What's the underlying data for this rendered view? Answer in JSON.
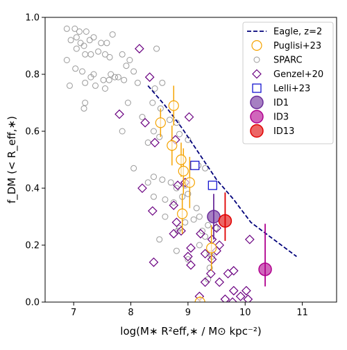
{
  "chart_data": {
    "type": "scatter",
    "xlabel": "log(M∗ R²eff,∗ / M⊙ kpc⁻²)",
    "ylabel": "f_DM (< R_eff,∗)",
    "xlim": [
      6.5,
      11.6
    ],
    "ylim": [
      0.0,
      1.0
    ],
    "x_ticks": [
      "7",
      "8",
      "9",
      "10",
      "11"
    ],
    "y_ticks": [
      "0.0",
      "0.2",
      "0.4",
      "0.6",
      "0.8",
      "1.0"
    ],
    "grid": false,
    "legend_position": "top-right",
    "series": [
      {
        "name": "Eagle, z=2",
        "kind": "dashed-line",
        "color": "#00007a",
        "x": [
          8.3,
          8.6,
          8.9,
          9.2,
          9.5,
          9.8,
          10.1,
          10.5,
          10.9
        ],
        "y": [
          0.76,
          0.69,
          0.61,
          0.52,
          0.43,
          0.36,
          0.28,
          0.22,
          0.16
        ]
      },
      {
        "name": "Puglisi+23",
        "kind": "open-circle-errorbar",
        "color": "#f5a300",
        "points": [
          {
            "x": 8.75,
            "y": 0.69,
            "yerr": 0.07
          },
          {
            "x": 8.52,
            "y": 0.63,
            "yerr": 0.05
          },
          {
            "x": 8.88,
            "y": 0.5,
            "yerr": 0.06
          },
          {
            "x": 8.72,
            "y": 0.55,
            "yerr": 0.07
          },
          {
            "x": 8.92,
            "y": 0.46,
            "yerr": 0.08
          },
          {
            "x": 9.03,
            "y": 0.42,
            "yerr": 0.09
          },
          {
            "x": 8.9,
            "y": 0.31,
            "yerr": 0.07
          },
          {
            "x": 9.41,
            "y": 0.19,
            "yerr": 0.08
          },
          {
            "x": 9.21,
            "y": 0.0,
            "yerr": 0.02
          }
        ]
      },
      {
        "name": "SPARC",
        "kind": "open-circle",
        "color": "#999999",
        "points": [
          [
            6.88,
            0.96
          ],
          [
            7.02,
            0.96
          ],
          [
            7.1,
            0.95
          ],
          [
            7.22,
            0.95
          ],
          [
            7.05,
            0.93
          ],
          [
            6.95,
            0.92
          ],
          [
            7.12,
            0.91
          ],
          [
            7.18,
            0.9
          ],
          [
            7.28,
            0.92
          ],
          [
            7.35,
            0.93
          ],
          [
            7.48,
            0.91
          ],
          [
            7.58,
            0.91
          ],
          [
            7.68,
            0.94
          ],
          [
            7.2,
            0.87
          ],
          [
            7.3,
            0.87
          ],
          [
            7.43,
            0.88
          ],
          [
            7.55,
            0.87
          ],
          [
            7.63,
            0.86
          ],
          [
            7.85,
            0.87
          ],
          [
            7.92,
            0.83
          ],
          [
            7.05,
            0.89
          ],
          [
            6.88,
            0.85
          ],
          [
            7.03,
            0.82
          ],
          [
            7.15,
            0.81
          ],
          [
            7.3,
            0.79
          ],
          [
            7.35,
            0.8
          ],
          [
            7.52,
            0.78
          ],
          [
            7.65,
            0.8
          ],
          [
            7.78,
            0.79
          ],
          [
            7.88,
            0.78
          ],
          [
            8.05,
            0.81
          ],
          [
            7.98,
            0.85
          ],
          [
            8.45,
            0.89
          ],
          [
            6.93,
            0.76
          ],
          [
            7.2,
            0.77
          ],
          [
            7.38,
            0.76
          ],
          [
            7.55,
            0.75
          ],
          [
            7.62,
            0.78
          ],
          [
            7.72,
            0.79
          ],
          [
            7.2,
            0.7
          ],
          [
            7.18,
            0.68
          ],
          [
            8.12,
            0.77
          ],
          [
            8.42,
            0.75
          ],
          [
            8.55,
            0.77
          ],
          [
            7.95,
            0.7
          ],
          [
            8.38,
            0.7
          ],
          [
            8.52,
            0.68
          ],
          [
            8.68,
            0.64
          ],
          [
            8.85,
            0.59
          ],
          [
            9.0,
            0.57
          ],
          [
            8.2,
            0.65
          ],
          [
            8.4,
            0.6
          ],
          [
            8.5,
            0.58
          ],
          [
            8.3,
            0.56
          ],
          [
            8.8,
            0.63
          ],
          [
            9.18,
            0.48
          ],
          [
            9.3,
            0.47
          ],
          [
            8.4,
            0.44
          ],
          [
            8.55,
            0.43
          ],
          [
            8.7,
            0.42
          ],
          [
            8.8,
            0.4
          ],
          [
            8.95,
            0.41
          ],
          [
            8.9,
            0.37
          ],
          [
            9.0,
            0.38
          ],
          [
            8.6,
            0.36
          ],
          [
            8.3,
            0.42
          ],
          [
            8.4,
            0.37
          ],
          [
            8.75,
            0.35
          ],
          [
            9.15,
            0.33
          ],
          [
            9.1,
            0.29
          ],
          [
            8.95,
            0.28
          ],
          [
            9.2,
            0.3
          ],
          [
            9.25,
            0.25
          ],
          [
            9.35,
            0.27
          ],
          [
            9.3,
            0.23
          ],
          [
            9.48,
            0.26
          ],
          [
            9.38,
            0.17
          ],
          [
            9.42,
            0.16
          ],
          [
            9.38,
            0.12
          ],
          [
            9.35,
            0.08
          ],
          [
            8.82,
            0.25
          ],
          [
            8.6,
            0.3
          ],
          [
            8.5,
            0.22
          ],
          [
            8.8,
            0.18
          ],
          [
            9.2,
            0.2
          ],
          [
            9.0,
            0.15
          ],
          [
            7.85,
            0.6
          ],
          [
            8.05,
            0.47
          ],
          [
            8.85,
            0.26
          ]
        ]
      },
      {
        "name": "Genzel+20",
        "kind": "open-diamond",
        "color": "#6a0080",
        "points": [
          [
            8.15,
            0.89
          ],
          [
            8.33,
            0.79
          ],
          [
            7.8,
            0.66
          ],
          [
            8.25,
            0.63
          ],
          [
            8.42,
            0.56
          ],
          [
            8.78,
            0.57
          ],
          [
            9.02,
            0.65
          ],
          [
            8.2,
            0.4
          ],
          [
            8.82,
            0.41
          ],
          [
            8.95,
            0.42
          ],
          [
            8.38,
            0.32
          ],
          [
            8.75,
            0.34
          ],
          [
            8.8,
            0.28
          ],
          [
            8.88,
            0.25
          ],
          [
            8.75,
            0.24
          ],
          [
            9.05,
            0.19
          ],
          [
            9.22,
            0.24
          ],
          [
            9.5,
            0.26
          ],
          [
            9.42,
            0.22
          ],
          [
            9.3,
            0.17
          ],
          [
            9.42,
            0.15
          ],
          [
            9.5,
            0.18
          ],
          [
            9.55,
            0.2
          ],
          [
            9.0,
            0.16
          ],
          [
            9.05,
            0.13
          ],
          [
            8.4,
            0.14
          ],
          [
            9.4,
            0.1
          ],
          [
            9.7,
            0.1
          ],
          [
            9.8,
            0.11
          ],
          [
            9.55,
            0.07
          ],
          [
            9.3,
            0.07
          ],
          [
            9.2,
            0.02
          ],
          [
            9.65,
            0.01
          ],
          [
            9.78,
            0.0
          ],
          [
            9.8,
            0.04
          ],
          [
            9.92,
            0.02
          ],
          [
            10.02,
            0.04
          ],
          [
            10.05,
            0.01
          ],
          [
            10.08,
            0.22
          ]
        ]
      },
      {
        "name": "Lelli+23",
        "kind": "open-square",
        "color": "#0000cc",
        "points": [
          [
            9.12,
            0.48
          ],
          [
            9.43,
            0.41
          ]
        ]
      },
      {
        "name": "ID1",
        "kind": "filled-circle-errorbar",
        "color": "#6a2c9a",
        "points": [
          {
            "x": 9.45,
            "y": 0.3,
            "yerr_low": 0.08,
            "yerr_high": 0.08
          }
        ]
      },
      {
        "name": "ID3",
        "kind": "filled-circle-errorbar",
        "color": "#b0008e",
        "points": [
          {
            "x": 10.35,
            "y": 0.115,
            "yerr_low": 0.06,
            "yerr_high": 0.16
          }
        ]
      },
      {
        "name": "ID13",
        "kind": "filled-circle-errorbar",
        "color": "#e00000",
        "points": [
          {
            "x": 9.65,
            "y": 0.285,
            "yerr_low": 0.07,
            "yerr_high": 0.1
          }
        ]
      }
    ]
  }
}
